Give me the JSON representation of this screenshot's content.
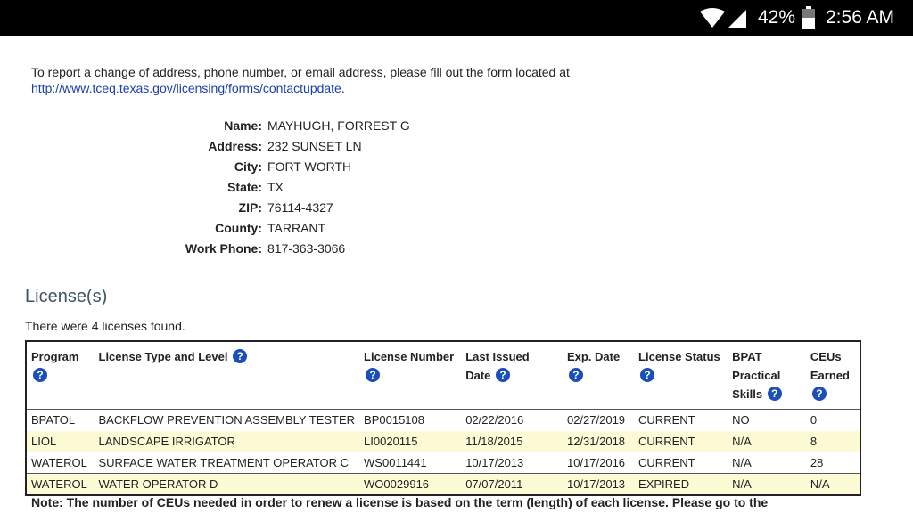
{
  "status_bar": {
    "battery": "42%",
    "time": "2:56 AM"
  },
  "intro": {
    "text": "To report a change of address, phone number, or email address, please fill out the form located at",
    "link": "http://www.tceq.texas.gov/licensing/forms/contactupdate",
    "after": "."
  },
  "info": [
    {
      "label": "Name:",
      "value": "MAYHUGH, FORREST G"
    },
    {
      "label": "Address:",
      "value": "232 SUNSET LN"
    },
    {
      "label": "City:",
      "value": "FORT WORTH"
    },
    {
      "label": "State:",
      "value": "TX"
    },
    {
      "label": "ZIP:",
      "value": "76114-4327"
    },
    {
      "label": "County:",
      "value": "TARRANT"
    },
    {
      "label": "Work Phone:",
      "value": "817-363-3066"
    }
  ],
  "licenses": {
    "heading": "License(s)",
    "found": "There were 4 licenses found.",
    "help_glyph": "?",
    "columns": [
      "Program",
      "License Type and Level",
      "License Number",
      "Last Issued Date",
      "Exp. Date",
      "License Status",
      "BPAT Practical Skills",
      "CEUs Earned"
    ],
    "rows": [
      [
        "BPATOL",
        "BACKFLOW PREVENTION ASSEMBLY TESTER",
        "BP0015108",
        "02/22/2016",
        "02/27/2019",
        "CURRENT",
        "NO",
        "0"
      ],
      [
        "LIOL",
        "LANDSCAPE IRRIGATOR",
        "LI0020115",
        "11/18/2015",
        "12/31/2018",
        "CURRENT",
        "N/A",
        "8"
      ],
      [
        "WATEROL",
        "SURFACE WATER TREATMENT OPERATOR C",
        "WS0011441",
        "10/17/2013",
        "10/17/2016",
        "CURRENT",
        "N/A",
        "28"
      ],
      [
        "WATEROL",
        "WATER OPERATOR D",
        "WO0029916",
        "07/07/2011",
        "10/17/2013",
        "EXPIRED",
        "N/A",
        "N/A"
      ]
    ]
  },
  "note": "Note: The number of CEUs needed in order to renew a license is based on the term (length) of each license. Please go to the"
}
